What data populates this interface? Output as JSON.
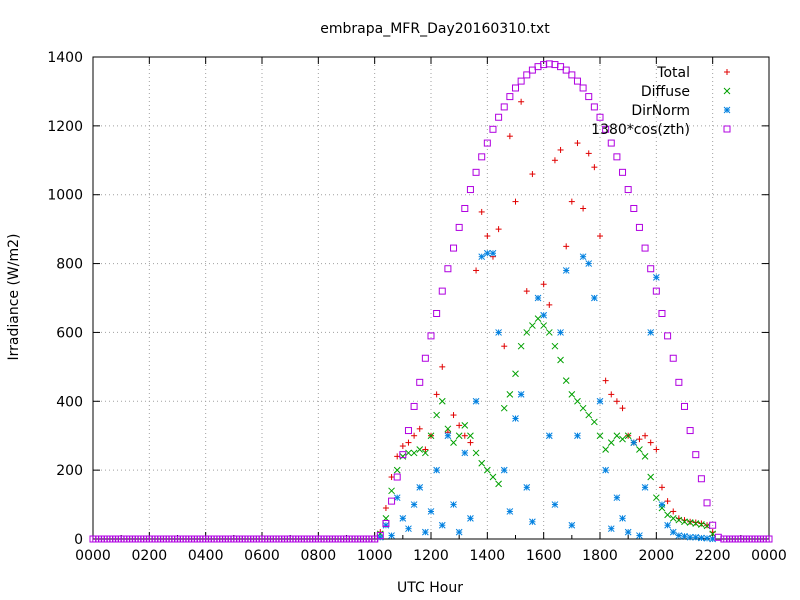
{
  "chart_data": {
    "type": "scatter",
    "title": "embrapa_MFR_Day20160310.txt",
    "xlabel": "UTC Hour",
    "ylabel": "Irradiance (W/m2)",
    "xlim": [
      0,
      24
    ],
    "ylim": [
      0,
      1400
    ],
    "x_tick_labels": [
      "0000",
      "0200",
      "0400",
      "0600",
      "0800",
      "1000",
      "1200",
      "1400",
      "1600",
      "1800",
      "2000",
      "2200",
      "0000"
    ],
    "x_tick_values": [
      0,
      2,
      4,
      6,
      8,
      10,
      12,
      14,
      16,
      18,
      20,
      22,
      24
    ],
    "y_tick_values": [
      0,
      200,
      400,
      600,
      800,
      1000,
      1200,
      1400
    ],
    "grid": true,
    "legend_position": "top-right",
    "series": [
      {
        "name": "Total",
        "marker": "plus",
        "color": "#e00000",
        "x": [
          10.2,
          10.4,
          10.6,
          10.8,
          11.0,
          11.2,
          11.4,
          11.6,
          11.8,
          12.0,
          12.2,
          12.4,
          12.6,
          12.8,
          13.0,
          13.2,
          13.4,
          13.6,
          13.8,
          14.0,
          14.2,
          14.4,
          14.6,
          14.8,
          15.0,
          15.2,
          15.4,
          15.6,
          15.8,
          16.0,
          16.2,
          16.4,
          16.6,
          16.8,
          17.0,
          17.2,
          17.4,
          17.6,
          17.8,
          18.0,
          18.2,
          18.4,
          18.6,
          18.8,
          19.0,
          19.2,
          19.4,
          19.6,
          19.8,
          20.0,
          20.2,
          20.4,
          20.6,
          20.8,
          21.0,
          21.2,
          21.4,
          21.6,
          21.8,
          22.0
        ],
        "y": [
          20,
          90,
          180,
          240,
          270,
          280,
          300,
          320,
          260,
          300,
          420,
          500,
          310,
          360,
          330,
          300,
          280,
          780,
          950,
          880,
          820,
          900,
          560,
          1170,
          980,
          1270,
          720,
          1060,
          700,
          740,
          680,
          1100,
          1130,
          850,
          980,
          1150,
          960,
          1120,
          1080,
          880,
          460,
          420,
          400,
          380,
          300,
          280,
          290,
          300,
          280,
          260,
          150,
          110,
          80,
          60,
          55,
          50,
          48,
          45,
          40,
          20
        ]
      },
      {
        "name": "Diffuse",
        "marker": "cross",
        "color": "#00a000",
        "x": [
          10.2,
          10.4,
          10.6,
          10.8,
          11.0,
          11.2,
          11.4,
          11.6,
          11.8,
          12.0,
          12.2,
          12.4,
          12.6,
          12.8,
          13.0,
          13.2,
          13.4,
          13.6,
          13.8,
          14.0,
          14.2,
          14.4,
          14.6,
          14.8,
          15.0,
          15.2,
          15.4,
          15.6,
          15.8,
          16.0,
          16.2,
          16.4,
          16.6,
          16.8,
          17.0,
          17.2,
          17.4,
          17.6,
          17.8,
          18.0,
          18.2,
          18.4,
          18.6,
          18.8,
          19.0,
          19.2,
          19.4,
          19.6,
          19.8,
          20.0,
          20.2,
          20.4,
          20.6,
          20.8,
          21.0,
          21.2,
          21.4,
          21.6,
          21.8,
          22.0
        ],
        "y": [
          15,
          60,
          140,
          200,
          240,
          250,
          250,
          260,
          250,
          300,
          360,
          400,
          320,
          280,
          300,
          330,
          300,
          250,
          220,
          200,
          180,
          160,
          380,
          420,
          480,
          560,
          600,
          620,
          640,
          620,
          600,
          560,
          520,
          460,
          420,
          400,
          380,
          360,
          340,
          300,
          260,
          280,
          300,
          290,
          300,
          280,
          260,
          240,
          180,
          120,
          90,
          70,
          60,
          55,
          50,
          48,
          45,
          42,
          38,
          15
        ]
      },
      {
        "name": "DirNorm",
        "marker": "star",
        "color": "#0080e0",
        "x": [
          10.2,
          10.4,
          10.6,
          10.8,
          11.0,
          11.2,
          11.4,
          11.6,
          11.8,
          12.0,
          12.2,
          12.4,
          12.6,
          12.8,
          13.0,
          13.2,
          13.4,
          13.6,
          13.8,
          14.0,
          14.2,
          14.4,
          14.6,
          14.8,
          15.0,
          15.2,
          15.4,
          15.6,
          15.8,
          16.0,
          16.2,
          16.4,
          16.6,
          16.8,
          17.0,
          17.2,
          17.4,
          17.6,
          17.8,
          18.0,
          18.2,
          18.4,
          18.6,
          18.8,
          19.0,
          19.2,
          19.4,
          19.6,
          19.8,
          20.0,
          20.2,
          20.4,
          20.6,
          20.8,
          21.0,
          21.2,
          21.4,
          21.6,
          21.8,
          22.0
        ],
        "y": [
          5,
          40,
          10,
          120,
          60,
          30,
          100,
          150,
          20,
          80,
          200,
          40,
          300,
          100,
          20,
          250,
          60,
          400,
          820,
          830,
          830,
          600,
          200,
          80,
          350,
          420,
          150,
          50,
          700,
          650,
          300,
          100,
          600,
          780,
          40,
          300,
          820,
          800,
          700,
          400,
          200,
          30,
          120,
          60,
          20,
          280,
          10,
          150,
          600,
          760,
          100,
          40,
          20,
          10,
          8,
          5,
          5,
          3,
          2,
          0
        ]
      },
      {
        "name": "1380*cos(zth)",
        "marker": "square",
        "color": "#b000e0",
        "x": [
          10.0,
          10.2,
          10.4,
          10.6,
          10.8,
          11.0,
          11.2,
          11.4,
          11.6,
          11.8,
          12.0,
          12.2,
          12.4,
          12.6,
          12.8,
          13.0,
          13.2,
          13.4,
          13.6,
          13.8,
          14.0,
          14.2,
          14.4,
          14.6,
          14.8,
          15.0,
          15.2,
          15.4,
          15.6,
          15.8,
          16.0,
          16.2,
          16.4,
          16.6,
          16.8,
          17.0,
          17.2,
          17.4,
          17.6,
          17.8,
          18.0,
          18.2,
          18.4,
          18.6,
          18.8,
          19.0,
          19.2,
          19.4,
          19.6,
          19.8,
          20.0,
          20.2,
          20.4,
          20.6,
          20.8,
          21.0,
          21.2,
          21.4,
          21.6,
          21.8,
          22.0,
          22.2,
          22.4
        ],
        "y": [
          0,
          10,
          45,
          110,
          180,
          245,
          315,
          385,
          455,
          525,
          590,
          655,
          720,
          785,
          845,
          905,
          960,
          1015,
          1065,
          1110,
          1150,
          1190,
          1225,
          1255,
          1285,
          1310,
          1330,
          1348,
          1362,
          1372,
          1378,
          1380,
          1378,
          1372,
          1362,
          1348,
          1330,
          1310,
          1285,
          1255,
          1225,
          1190,
          1150,
          1110,
          1065,
          1015,
          960,
          905,
          845,
          785,
          720,
          655,
          590,
          525,
          455,
          385,
          315,
          245,
          175,
          105,
          40,
          5,
          0
        ]
      }
    ]
  }
}
